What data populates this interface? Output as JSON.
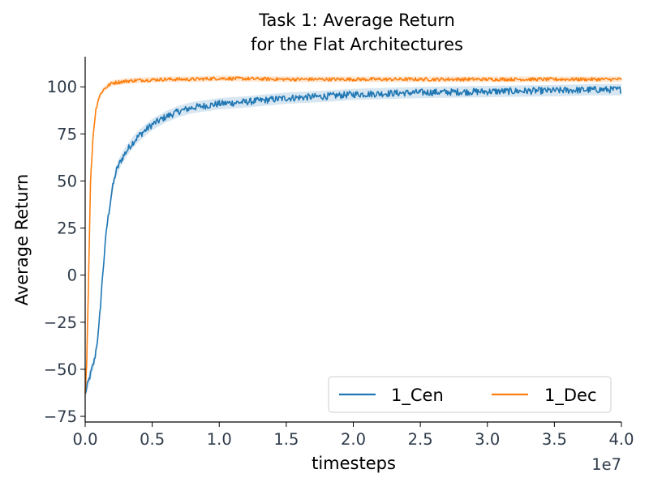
{
  "chart_data": {
    "type": "line",
    "title_line1": "Task 1: Average Return",
    "title_line2": "for the Flat Architectures",
    "xlabel": "timesteps",
    "ylabel": "Average Return",
    "x_offset_label": "1e7",
    "x_scale": 10000000.0,
    "xlim": [
      0,
      40000000
    ],
    "ylim": [
      -78,
      116
    ],
    "x_ticks": [
      0,
      5000000,
      10000000,
      15000000,
      20000000,
      25000000,
      30000000,
      35000000,
      40000000
    ],
    "x_tick_labels": [
      "0.0",
      "0.5",
      "1.0",
      "1.5",
      "2.0",
      "2.5",
      "3.0",
      "3.5",
      "4.0"
    ],
    "y_ticks": [
      -75,
      -50,
      -25,
      0,
      25,
      50,
      75,
      100
    ],
    "y_tick_labels": [
      "−75",
      "−50",
      "−25",
      "0",
      "25",
      "50",
      "75",
      "100"
    ],
    "grid": false,
    "legend_position": "lower-right",
    "legend_columns": 2,
    "series": [
      {
        "name": "1_Cen",
        "color": "#1f77b4",
        "x": [
          0,
          300000,
          700000,
          1000000,
          1300000,
          1600000,
          2000000,
          2300000,
          2600000,
          3000000,
          3500000,
          4000000,
          5000000,
          6000000,
          7000000,
          8000000,
          10000000,
          12000000,
          15000000,
          18000000,
          20000000,
          25000000,
          30000000,
          35000000,
          38000000,
          40000000
        ],
        "y": [
          -63,
          -55,
          -45,
          -30,
          0,
          25,
          45,
          55,
          60,
          65,
          70,
          74,
          80,
          84,
          87,
          89,
          91,
          92,
          94,
          95,
          96,
          97,
          97.5,
          98,
          98.5,
          98.5
        ],
        "band": 3
      },
      {
        "name": "1_Dec",
        "color": "#ff7f0e",
        "x": [
          0,
          100000,
          200000,
          300000,
          400000,
          600000,
          800000,
          1000000,
          1300000,
          1600000,
          2000000,
          2500000,
          3000000,
          4000000,
          6000000,
          8000000,
          10000000,
          12000000,
          15000000,
          20000000,
          25000000,
          30000000,
          35000000,
          40000000
        ],
        "y": [
          -63,
          -50,
          -20,
          15,
          50,
          75,
          88,
          94,
          98,
          100,
          102,
          102.5,
          103,
          103.5,
          104,
          104,
          104.5,
          104.3,
          104,
          104,
          104,
          104,
          104,
          104
        ],
        "band": 1.5
      }
    ]
  }
}
